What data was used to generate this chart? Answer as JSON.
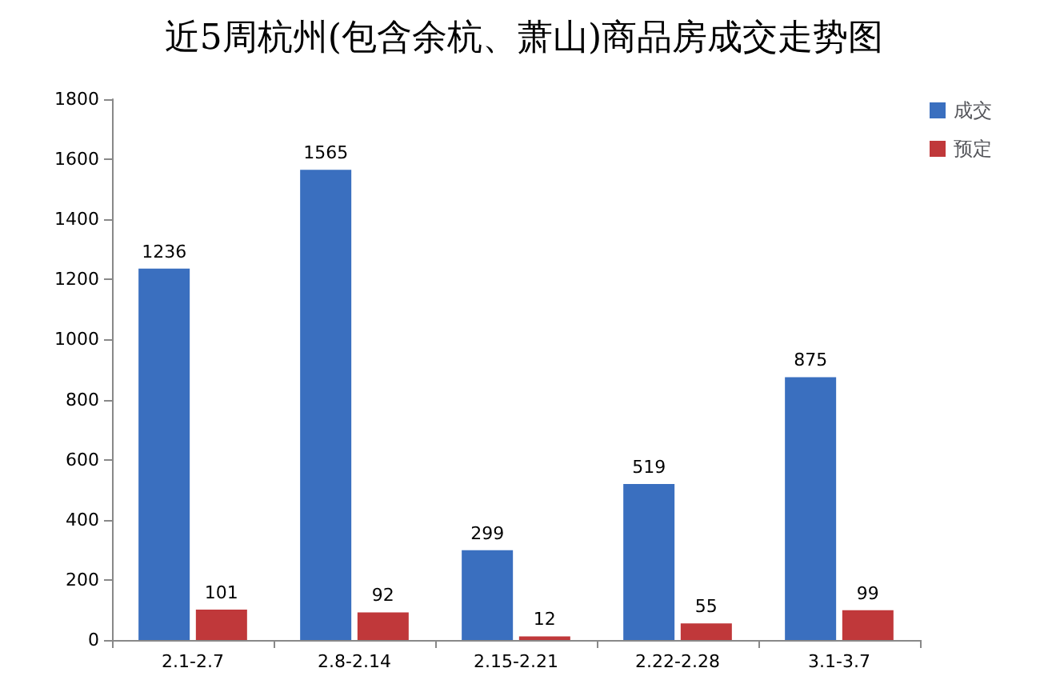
{
  "chart_data": {
    "type": "bar",
    "title": "近5周杭州(包含余杭、萧山)商品房成交走势图",
    "categories": [
      "2.1-2.7",
      "2.8-2.14",
      "2.15-2.21",
      "2.22-2.28",
      "3.1-3.7"
    ],
    "series": [
      {
        "name": "成交",
        "color": "#3a6fbf",
        "values": [
          1236,
          1565,
          299,
          519,
          875
        ]
      },
      {
        "name": "预定",
        "color": "#c0383a",
        "values": [
          101,
          92,
          12,
          55,
          99
        ]
      }
    ],
    "ylim": [
      0,
      1800
    ],
    "yticks": [
      0,
      200,
      400,
      600,
      800,
      1000,
      1200,
      1400,
      1600,
      1800
    ],
    "grid": false,
    "legend": "top right",
    "data_labels": true
  }
}
